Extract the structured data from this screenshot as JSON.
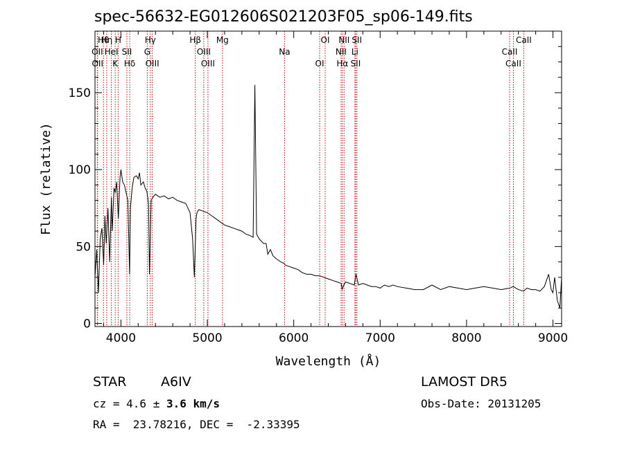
{
  "header": {
    "title": "spec-56632-EG012606S021203F05_sp06-149.fits"
  },
  "info": {
    "object_class": "STAR",
    "subclass": "A6IV",
    "cz_prefix": "cz = 4.6 ± ",
    "cz_error": "3.6 km/s",
    "radec": "RA =  23.78216, DEC =  -2.33395",
    "survey": "LAMOST DR5",
    "obs_date": "Obs-Date: 20131205"
  },
  "colors": {
    "spectrum": "#000000",
    "line_markers": "#cc0000",
    "axes": "#000000",
    "background": "#ffffff"
  },
  "chart_data": {
    "type": "line",
    "title": "spec-56632-EG012606S021203F05_sp06-149.fits",
    "xlabel": "Wavelength (Å)",
    "ylabel": "Flux (relative)",
    "xlim": [
      3700,
      9100
    ],
    "ylim": [
      -2,
      190
    ],
    "x_ticks": [
      4000,
      5000,
      6000,
      7000,
      8000,
      9000
    ],
    "x_tick_labels": [
      "4000",
      "5000",
      "6000",
      "7000",
      "8000",
      "9000"
    ],
    "y_ticks": [
      0,
      50,
      100,
      150
    ],
    "y_tick_labels": [
      "0",
      "50",
      "100",
      "150"
    ],
    "grid": false,
    "legend": "none",
    "series": [
      {
        "x": [
          3700,
          3720,
          3740,
          3760,
          3780,
          3800,
          3815,
          3830,
          3850,
          3870,
          3890,
          3900,
          3920,
          3935,
          3950,
          3970,
          3990,
          4000,
          4020,
          4040,
          4060,
          4080,
          4100,
          4110,
          4130,
          4150,
          4180,
          4200,
          4215,
          4230,
          4260,
          4280,
          4300,
          4320,
          4330,
          4340,
          4350,
          4370,
          4400,
          4450,
          4500,
          4550,
          4600,
          4650,
          4700,
          4750,
          4800,
          4830,
          4850,
          4860,
          4870,
          4880,
          4900,
          4950,
          5000,
          5050,
          5100,
          5150,
          5200,
          5250,
          5300,
          5350,
          5400,
          5450,
          5500,
          5530,
          5550,
          5570,
          5600,
          5650,
          5680,
          5700,
          5730,
          5760,
          5800,
          5850,
          5890,
          5900,
          5950,
          6000,
          6050,
          6100,
          6150,
          6200,
          6250,
          6300,
          6350,
          6400,
          6450,
          6500,
          6550,
          6560,
          6580,
          6600,
          6650,
          6700,
          6720,
          6750,
          6800,
          6850,
          6900,
          6950,
          7000,
          7050,
          7100,
          7150,
          7200,
          7300,
          7400,
          7500,
          7600,
          7700,
          7800,
          7900,
          8000,
          8100,
          8200,
          8300,
          8400,
          8500,
          8540,
          8600,
          8660,
          8700,
          8750,
          8800,
          8850,
          8900,
          8950,
          8980,
          9000,
          9020,
          9050,
          9080,
          9100
        ],
        "values": [
          30,
          48,
          20,
          55,
          62,
          38,
          70,
          52,
          75,
          40,
          82,
          60,
          88,
          85,
          92,
          68,
          95,
          100,
          92,
          90,
          85,
          80,
          32,
          75,
          88,
          95,
          96,
          94,
          98,
          90,
          92,
          88,
          86,
          78,
          32,
          55,
          80,
          82,
          84,
          82,
          83,
          81,
          82,
          80,
          79,
          78,
          72,
          55,
          30,
          50,
          68,
          72,
          74,
          73,
          72,
          70,
          68,
          66,
          64,
          63,
          62,
          61,
          60,
          58,
          57,
          56,
          155,
          58,
          55,
          52,
          52,
          45,
          48,
          44,
          42,
          40,
          39,
          38,
          37,
          36,
          35,
          33,
          32,
          32,
          31,
          31,
          30,
          29,
          28,
          27,
          26,
          22,
          25,
          27,
          26,
          25,
          32,
          25,
          26,
          25,
          24,
          24,
          23,
          25,
          24,
          25,
          24,
          23,
          22,
          22,
          25,
          22,
          24,
          23,
          22,
          23,
          24,
          23,
          22,
          23,
          24,
          22,
          21,
          23,
          22,
          22,
          21,
          24,
          32,
          22,
          20,
          30,
          15,
          10,
          30
        ]
      }
    ],
    "line_markers": [
      {
        "label": "Hθ",
        "wavelength": 3798
      },
      {
        "label": "OII",
        "wavelength": 3727
      },
      {
        "label": "OII",
        "wavelength": 3730
      },
      {
        "label": "Hη",
        "wavelength": 3836
      },
      {
        "label": "HeI",
        "wavelength": 3889
      },
      {
        "label": "K",
        "wavelength": 3934
      },
      {
        "label": "H",
        "wavelength": 3968
      },
      {
        "label": "SII",
        "wavelength": 4069
      },
      {
        "label": "Hδ",
        "wavelength": 4102
      },
      {
        "label": "Hγ",
        "wavelength": 4340
      },
      {
        "label": "G",
        "wavelength": 4305
      },
      {
        "label": "OIII",
        "wavelength": 4363
      },
      {
        "label": "Hβ",
        "wavelength": 4861
      },
      {
        "label": "OIII",
        "wavelength": 4959
      },
      {
        "label": "OIII",
        "wavelength": 5007
      },
      {
        "label": "Mg",
        "wavelength": 5175
      },
      {
        "label": "Na",
        "wavelength": 5894
      },
      {
        "label": "OI",
        "wavelength": 6300
      },
      {
        "label": "OI",
        "wavelength": 6364
      },
      {
        "label": "NII",
        "wavelength": 6548
      },
      {
        "label": "Hα",
        "wavelength": 6563
      },
      {
        "label": "NII",
        "wavelength": 6583
      },
      {
        "label": "Li",
        "wavelength": 6708
      },
      {
        "label": "SII",
        "wavelength": 6716
      },
      {
        "label": "SII",
        "wavelength": 6731
      },
      {
        "label": "CaII",
        "wavelength": 8498
      },
      {
        "label": "CaII",
        "wavelength": 8542
      },
      {
        "label": "CaII",
        "wavelength": 8662
      }
    ]
  }
}
